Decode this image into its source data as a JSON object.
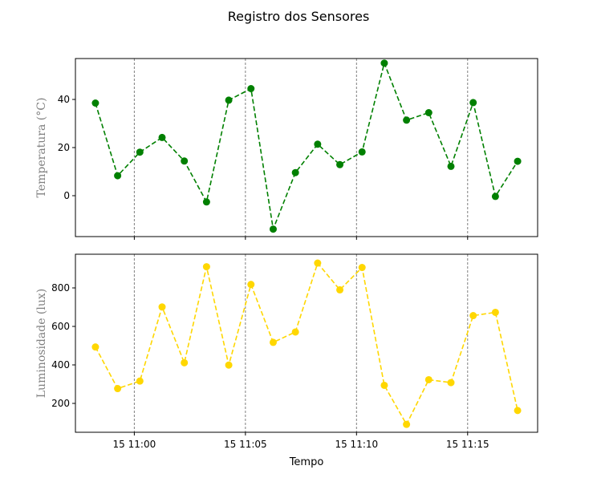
{
  "chart_data": {
    "type": "line",
    "title": "Registro dos Sensores",
    "xlabel": "Tempo",
    "x_tick_labels": [
      "15 11:00",
      "15 11:05",
      "15 11:10",
      "15 11:15"
    ],
    "x_tick_minutes": [
      0,
      5,
      10,
      15
    ],
    "x_minutes": [
      -1.75,
      -0.75,
      0.25,
      1.25,
      2.25,
      3.25,
      4.25,
      5.25,
      6.25,
      7.25,
      8.25,
      9.25,
      10.25,
      11.25,
      12.25,
      13.25,
      14.25,
      15.25,
      16.25,
      17.25
    ],
    "xlim_minutes": [
      -2.65,
      18.15
    ],
    "vertical_gridlines": true,
    "panels": [
      {
        "ylabel": "Temperatura (°C)",
        "ylim": [
          -17,
          57
        ],
        "yticks": [
          0,
          20,
          40
        ],
        "series": [
          {
            "color": "#008000",
            "line_style": "dashed",
            "marker": "circle",
            "values": [
              38.5,
              8.3,
              18.1,
              24.2,
              14.4,
              -2.6,
              39.7,
              44.5,
              -13.9,
              9.6,
              21.4,
              12.9,
              18.2,
              55.1,
              31.4,
              34.5,
              12.2,
              38.7,
              -0.3,
              14.3
            ]
          }
        ]
      },
      {
        "ylabel": "Luminosidade (lux)",
        "ylim": [
          50,
          975
        ],
        "yticks": [
          200,
          400,
          600,
          800
        ],
        "series": [
          {
            "color": "#FFD700",
            "line_style": "dashed",
            "marker": "circle",
            "values": [
              493,
              277,
              316,
              701,
              411,
              910,
              399,
              818,
              517,
              571,
              929,
              790,
              906,
              294,
              91,
              323,
              308,
              656,
              673,
              163
            ]
          }
        ]
      }
    ]
  }
}
